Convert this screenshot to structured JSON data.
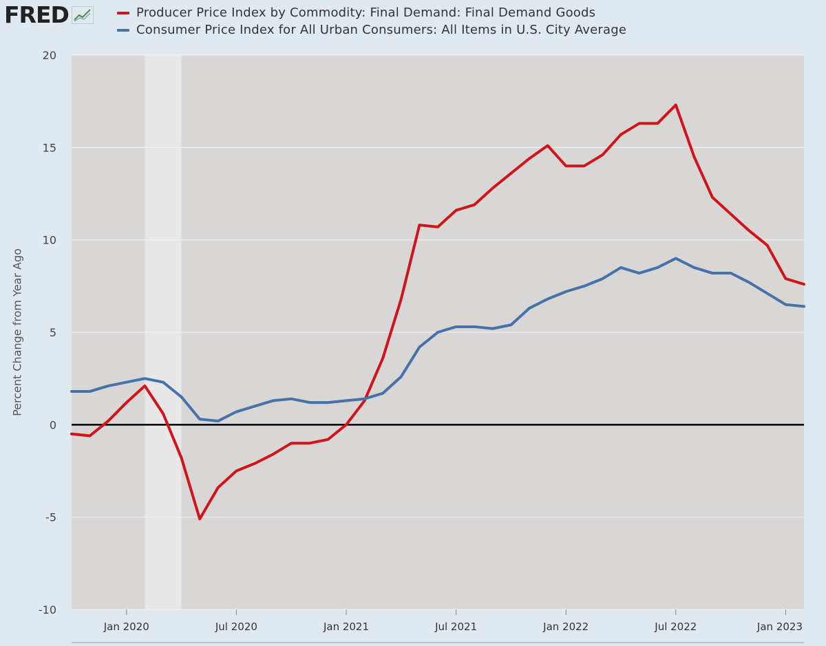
{
  "logo": {
    "text": "FRED"
  },
  "chart_data": {
    "type": "line",
    "ylabel": "Percent Change from Year Ago",
    "ylim": [
      -10,
      20
    ],
    "yticks": [
      -10,
      -5,
      0,
      5,
      10,
      15,
      20
    ],
    "x": [
      "2019-10",
      "2019-11",
      "2019-12",
      "2020-01",
      "2020-02",
      "2020-03",
      "2020-04",
      "2020-05",
      "2020-06",
      "2020-07",
      "2020-08",
      "2020-09",
      "2020-10",
      "2020-11",
      "2020-12",
      "2021-01",
      "2021-02",
      "2021-03",
      "2021-04",
      "2021-05",
      "2021-06",
      "2021-07",
      "2021-08",
      "2021-09",
      "2021-10",
      "2021-11",
      "2021-12",
      "2022-01",
      "2022-02",
      "2022-03",
      "2022-04",
      "2022-05",
      "2022-06",
      "2022-07",
      "2022-08",
      "2022-09",
      "2022-10",
      "2022-11",
      "2022-12",
      "2023-01",
      "2023-02"
    ],
    "x_tick_labels": [
      "Jan 2020",
      "Jul 2020",
      "Jan 2021",
      "Jul 2021",
      "Jan 2022",
      "Jul 2022",
      "Jan 2023"
    ],
    "recession": {
      "start": "2020-02",
      "end": "2020-04"
    },
    "grid": true,
    "legend_position": "top",
    "series": [
      {
        "name": "Producer Price Index by Commodity: Final Demand: Final Demand Goods",
        "color": "#d0141b",
        "values": [
          -0.5,
          -0.6,
          0.2,
          1.2,
          2.1,
          0.6,
          -1.8,
          -5.1,
          -3.4,
          -2.5,
          -2.1,
          -1.6,
          -1.0,
          -1.0,
          -0.8,
          0.0,
          1.3,
          3.6,
          6.8,
          10.8,
          10.7,
          11.6,
          11.9,
          12.8,
          13.6,
          14.4,
          15.1,
          14.0,
          14.0,
          14.6,
          15.7,
          16.3,
          16.3,
          17.3,
          14.5,
          12.3,
          11.4,
          10.5,
          9.7,
          7.9,
          7.6
        ]
      },
      {
        "name": "Consumer Price Index for All Urban Consumers: All Items in U.S. City Average",
        "color": "#4572a7",
        "values": [
          1.8,
          1.8,
          2.1,
          2.3,
          2.5,
          2.3,
          1.5,
          0.3,
          0.2,
          0.7,
          1.0,
          1.3,
          1.4,
          1.2,
          1.2,
          1.3,
          1.4,
          1.7,
          2.6,
          4.2,
          5.0,
          5.3,
          5.3,
          5.2,
          5.4,
          6.3,
          6.8,
          7.2,
          7.5,
          7.9,
          8.5,
          8.2,
          8.5,
          9.0,
          8.5,
          8.2,
          8.2,
          7.7,
          7.1,
          6.5,
          6.4
        ]
      }
    ]
  }
}
